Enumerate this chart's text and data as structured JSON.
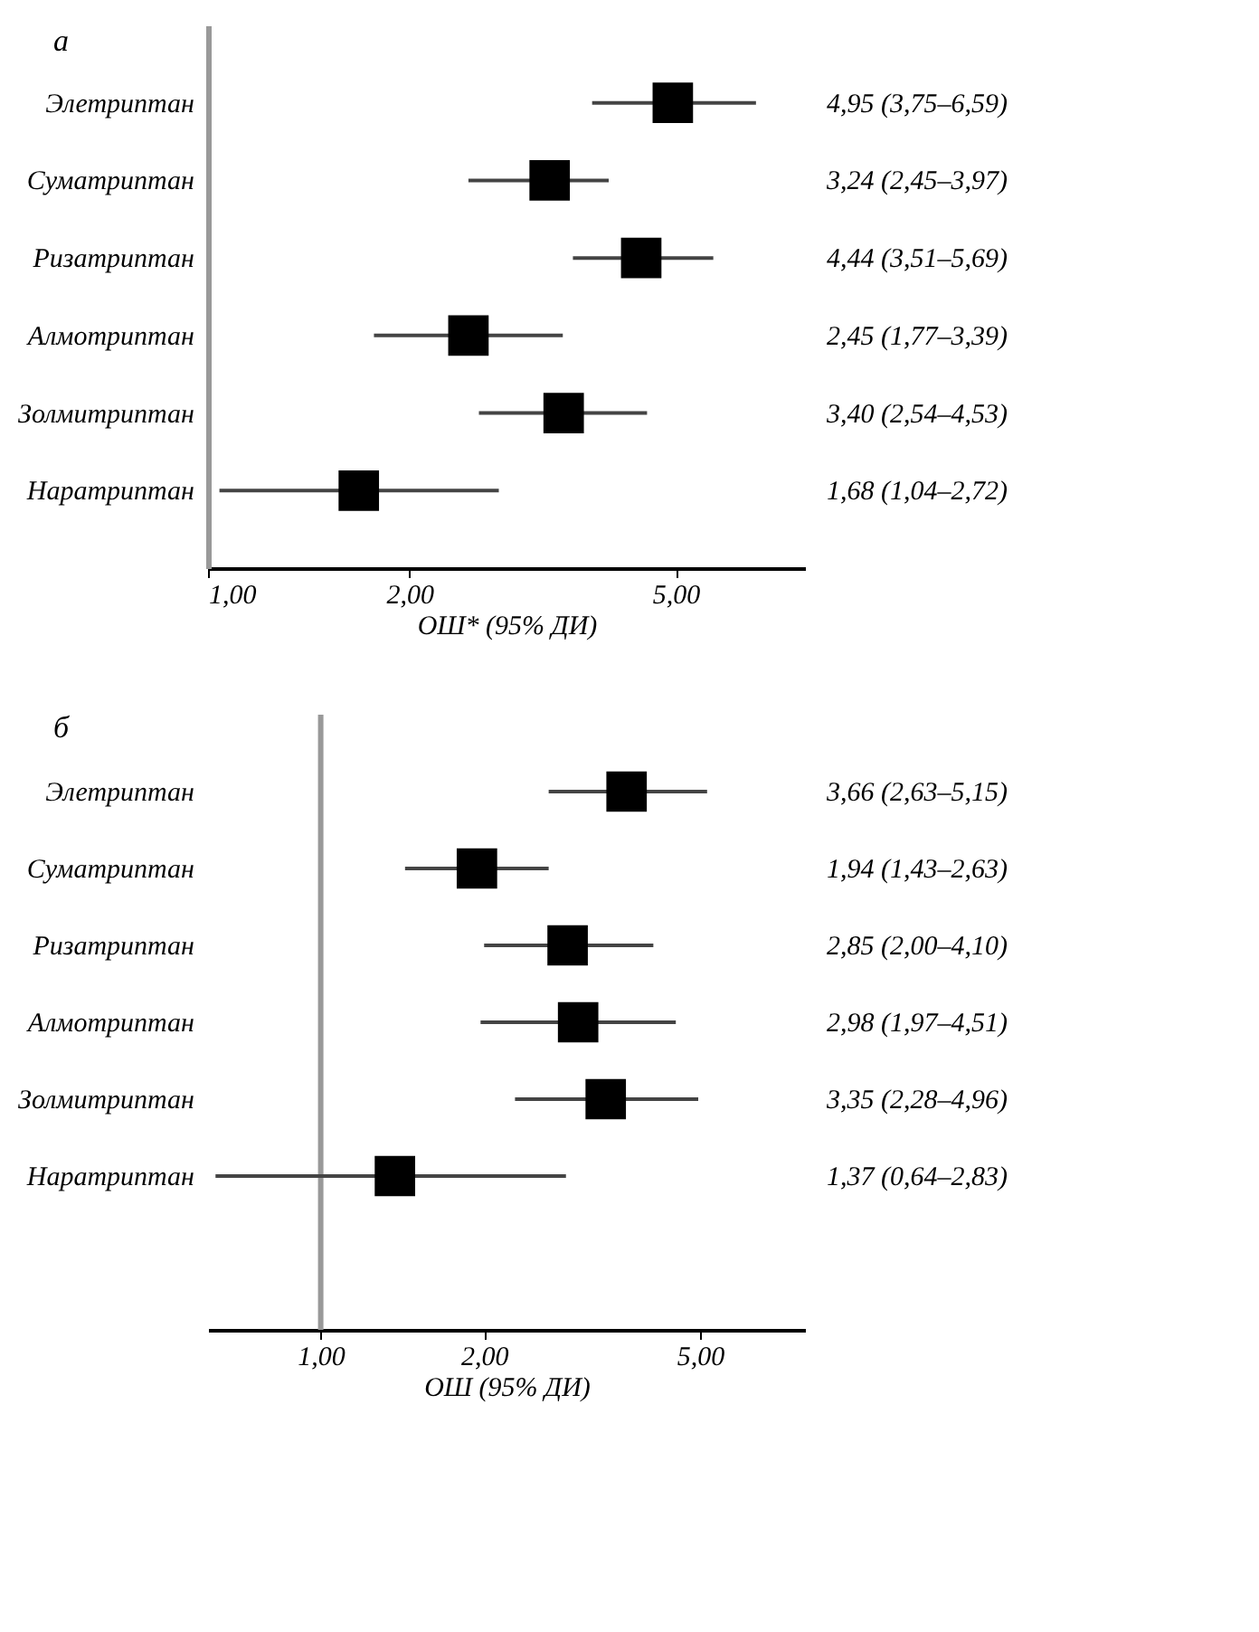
{
  "chart_data": [
    {
      "type": "scatter",
      "title": "а",
      "orientation": "horizontal",
      "marker": "square",
      "log": "x",
      "grid": false,
      "xlabel": "ОШ* (95% ДИ)",
      "categories": [
        "Элетриптан",
        "Суматриптан",
        "Ризатриптан",
        "Алмотриптан",
        "Золмитриптан",
        "Наратриптан"
      ],
      "series": [
        {
          "color": "#000000",
          "values": [
            4.95,
            3.24,
            4.44,
            2.45,
            3.4,
            1.68
          ],
          "errors": [
            [
              3.75,
              6.59
            ],
            [
              2.45,
              3.97
            ],
            [
              3.51,
              5.69
            ],
            [
              1.77,
              3.39
            ],
            [
              2.54,
              4.53
            ],
            [
              1.04,
              2.72
            ]
          ],
          "value_labels": [
            "4,95 (3,75–6,59)",
            "3,24 (2,45–3,97)",
            "4,44 (3,51–5,69)",
            "2,45 (1,77–3,39)",
            "3,40 (2,54–4,53)",
            "1,68 (1,04–2,72)"
          ]
        }
      ],
      "xlim": [
        1,
        7.8
      ],
      "xticks": [
        {
          "value": 1,
          "label": "1,00"
        },
        {
          "value": 2,
          "label": "2,00"
        },
        {
          "value": 5,
          "label": "5,00"
        }
      ]
    },
    {
      "type": "scatter",
      "title": "б",
      "orientation": "horizontal",
      "marker": "square",
      "log": "x",
      "grid": false,
      "xlabel": "ОШ (95% ДИ)",
      "categories": [
        "Элетриптан",
        "Суматриптан",
        "Ризатриптан",
        "Алмотриптан",
        "Золмитриптан",
        "Наратриптан"
      ],
      "series": [
        {
          "color": "#000000",
          "values": [
            3.66,
            1.94,
            2.85,
            2.98,
            3.35,
            1.37
          ],
          "errors": [
            [
              2.63,
              5.15
            ],
            [
              1.43,
              2.63
            ],
            [
              2.0,
              4.1
            ],
            [
              1.97,
              4.51
            ],
            [
              2.28,
              4.96
            ],
            [
              0.64,
              2.83
            ]
          ],
          "value_labels": [
            "3,66 (2,63–5,15)",
            "1,94 (1,43–2,63)",
            "2,85 (2,00–4,10)",
            "2,98 (1,97–4,51)",
            "3,35 (2,28–4,96)",
            "1,37 (0,64–2,83)"
          ]
        }
      ],
      "xlim": [
        0.62,
        7.8
      ],
      "xticks": [
        {
          "value": 1,
          "label": "1,00"
        },
        {
          "value": 2,
          "label": "2,00"
        },
        {
          "value": 5,
          "label": "5,00"
        }
      ],
      "ref_lines": [
        {
          "axis": "x",
          "value": 1,
          "color": "#999999"
        }
      ]
    }
  ]
}
